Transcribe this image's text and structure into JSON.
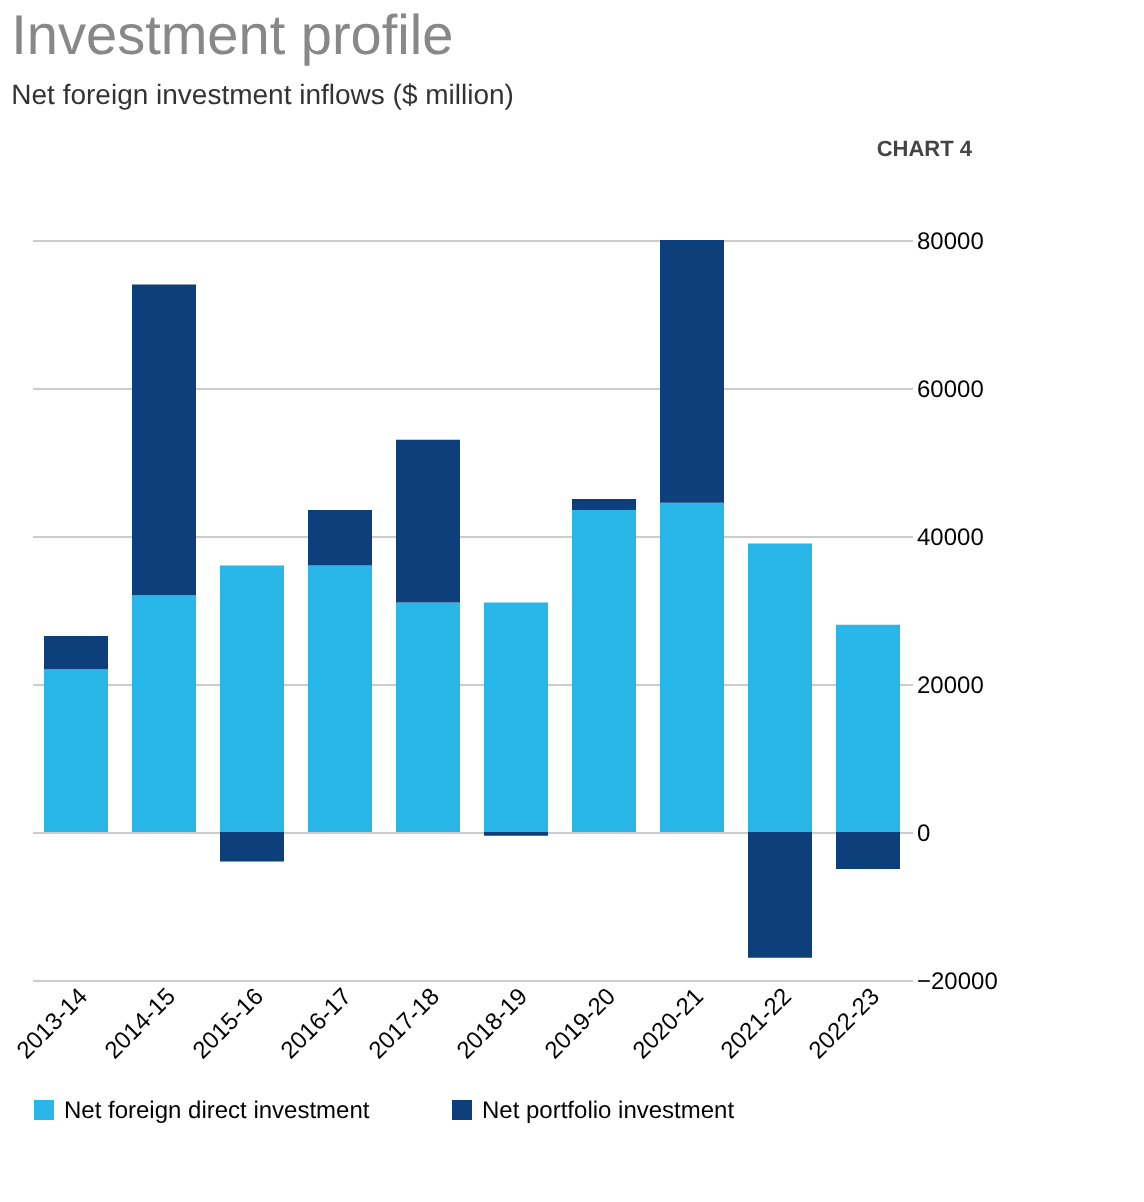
{
  "chart_data": {
    "type": "bar",
    "title": "Investment profile",
    "subtitle": "Net foreign investment inflows ($ million)",
    "annotations": [
      "CHART 4"
    ],
    "categories": [
      "2013-14",
      "2014-15",
      "2015-16",
      "2016-17",
      "2017-18",
      "2018-19",
      "2019-20",
      "2020-21",
      "2021-22",
      "2022-23"
    ],
    "stacked": true,
    "legend": "bottom",
    "grid": "y",
    "ylim": [
      -20000,
      80000
    ],
    "yticks": [
      -20000,
      0,
      20000,
      40000,
      60000,
      80000
    ],
    "series": [
      {
        "name": "Net foreign direct investment",
        "color": "#29b6e8",
        "values": [
          22000,
          32000,
          36000,
          36000,
          31000,
          31000,
          43500,
          44500,
          39000,
          28000
        ]
      },
      {
        "name": "Net portfolio investment",
        "color": "#0d3f7a",
        "values": [
          4500,
          42000,
          -4000,
          7500,
          22000,
          -500,
          1500,
          35500,
          -17000,
          -5000
        ]
      }
    ]
  }
}
